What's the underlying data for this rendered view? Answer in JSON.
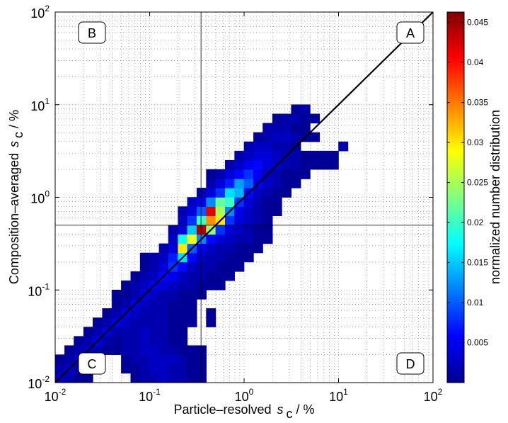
{
  "chart_data": {
    "type": "heatmap",
    "xlabel": {
      "text": "Particle–resolved",
      "symbol": "s",
      "subscript": "c",
      "unit": "/ %"
    },
    "ylabel": {
      "text": "Composition–averaged",
      "symbol": "s",
      "subscript": "c",
      "unit": "/ %"
    },
    "colorbar_label": "normalized number distribution",
    "xscale": "log",
    "yscale": "log",
    "grid": true,
    "colormap": "jet",
    "xlim": [
      0.01,
      100
    ],
    "ylim": [
      0.01,
      100
    ],
    "xticks": [
      {
        "value": 0.01,
        "label": "10",
        "exponent": "-2"
      },
      {
        "value": 0.1,
        "label": "10",
        "exponent": "-1"
      },
      {
        "value": 1,
        "label": "10",
        "exponent": "0"
      },
      {
        "value": 10,
        "label": "10",
        "exponent": "1"
      },
      {
        "value": 100,
        "label": "10",
        "exponent": "2"
      }
    ],
    "yticks": [
      {
        "value": 0.01,
        "label": "10",
        "exponent": "-2"
      },
      {
        "value": 0.1,
        "label": "10",
        "exponent": "-1"
      },
      {
        "value": 1,
        "label": "10",
        "exponent": "0"
      },
      {
        "value": 10,
        "label": "10",
        "exponent": "1"
      },
      {
        "value": 100,
        "label": "10",
        "exponent": "2"
      }
    ],
    "minor_ticks": [
      0.02,
      0.03,
      0.04,
      0.05,
      0.06,
      0.07,
      0.08,
      0.09,
      0.2,
      0.3,
      0.4,
      0.5,
      0.6,
      0.7,
      0.8,
      0.9,
      2,
      3,
      4,
      5,
      6,
      7,
      8,
      9,
      20,
      30,
      40,
      50,
      60,
      70,
      80,
      90
    ],
    "clim": [
      0,
      0.0463
    ],
    "cticks": [
      0.005,
      0.01,
      0.015,
      0.02,
      0.025,
      0.03,
      0.035,
      0.04,
      0.045
    ],
    "diagonal": true,
    "reference_lines": {
      "x": 0.35,
      "y": 0.5
    },
    "quadrant_labels": [
      "A",
      "B",
      "C",
      "D"
    ],
    "x_bins": [
      0.01,
      0.0126,
      0.0158,
      0.02,
      0.0251,
      0.0316,
      0.0398,
      0.0501,
      0.0631,
      0.0794,
      0.1,
      0.126,
      0.158,
      0.2,
      0.251,
      0.316,
      0.398,
      0.501,
      0.631,
      0.794,
      1,
      1.26,
      1.58,
      2,
      2.51,
      3.16,
      3.98,
      5.01,
      6.31,
      7.94,
      10,
      12.6,
      15.8
    ],
    "y_bins": [
      0.01,
      0.0126,
      0.0158,
      0.02,
      0.0251,
      0.0316,
      0.0398,
      0.0501,
      0.0631,
      0.0794,
      0.1,
      0.126,
      0.158,
      0.2,
      0.251,
      0.316,
      0.398,
      0.501,
      0.631,
      0.794,
      1,
      1.26,
      1.58,
      2,
      2.51,
      3.16,
      3.98,
      5.01,
      6.31,
      7.94,
      10
    ],
    "z": [
      [
        0.003,
        0.002,
        0.001,
        0.001,
        null,
        null,
        null,
        null,
        0.001,
        0.002,
        0.002,
        0.003,
        0.002,
        0.002,
        0.001,
        0.001,
        null,
        null,
        null,
        null,
        null,
        null,
        null,
        null,
        null,
        null,
        null,
        null,
        null,
        null,
        null,
        null
      ],
      [
        0.002,
        0.003,
        0.002,
        0.001,
        null,
        null,
        null,
        0.001,
        0.001,
        0.002,
        0.003,
        0.003,
        0.002,
        0.002,
        0.001,
        0.001,
        null,
        null,
        null,
        null,
        null,
        null,
        null,
        null,
        null,
        null,
        null,
        null,
        null,
        null,
        null,
        null
      ],
      [
        0.001,
        0.002,
        0.003,
        0.002,
        0.001,
        null,
        null,
        0.001,
        0.002,
        0.002,
        0.003,
        0.003,
        0.003,
        0.002,
        0.001,
        0.001,
        null,
        null,
        null,
        null,
        null,
        null,
        null,
        null,
        null,
        null,
        null,
        null,
        null,
        null,
        null,
        null
      ],
      [
        null,
        0.001,
        0.002,
        0.003,
        0.002,
        0.001,
        0.001,
        0.002,
        0.002,
        0.003,
        0.003,
        0.002,
        0.002,
        0.001,
        0.001,
        0.001,
        null,
        null,
        null,
        null,
        null,
        null,
        null,
        null,
        null,
        null,
        null,
        null,
        null,
        null,
        null,
        null
      ],
      [
        null,
        null,
        0.001,
        0.002,
        0.004,
        0.002,
        0.001,
        0.002,
        0.002,
        0.003,
        0.002,
        0.002,
        0.001,
        0.001,
        null,
        null,
        null,
        null,
        null,
        null,
        null,
        null,
        null,
        null,
        null,
        null,
        null,
        null,
        null,
        null,
        null,
        null
      ],
      [
        null,
        null,
        null,
        0.001,
        0.002,
        0.004,
        0.002,
        0.002,
        0.002,
        0.003,
        0.002,
        0.002,
        0.001,
        0.001,
        null,
        null,
        null,
        null,
        null,
        null,
        null,
        null,
        null,
        null,
        null,
        null,
        null,
        null,
        null,
        null,
        null,
        null
      ],
      [
        null,
        null,
        null,
        null,
        0.001,
        0.002,
        0.004,
        0.003,
        0.002,
        0.002,
        0.002,
        0.002,
        0.001,
        0.001,
        0.001,
        null,
        0.001,
        null,
        null,
        null,
        null,
        null,
        null,
        null,
        null,
        null,
        null,
        null,
        null,
        null,
        null,
        null
      ],
      [
        null,
        null,
        null,
        null,
        null,
        0.001,
        0.002,
        0.004,
        0.003,
        0.002,
        0.002,
        0.002,
        0.001,
        0.001,
        0.001,
        null,
        0.001,
        null,
        null,
        null,
        null,
        null,
        null,
        null,
        null,
        null,
        null,
        null,
        null,
        null,
        null,
        null
      ],
      [
        null,
        null,
        null,
        null,
        null,
        null,
        0.001,
        0.002,
        0.004,
        0.003,
        0.002,
        0.002,
        0.001,
        0.001,
        0.001,
        null,
        null,
        null,
        null,
        null,
        null,
        null,
        null,
        null,
        null,
        null,
        null,
        null,
        null,
        null,
        null,
        null
      ],
      [
        null,
        null,
        null,
        null,
        null,
        null,
        0.001,
        0.001,
        0.002,
        0.004,
        0.003,
        0.002,
        0.002,
        0.001,
        0.001,
        0.001,
        null,
        null,
        null,
        null,
        null,
        null,
        null,
        null,
        null,
        null,
        null,
        null,
        null,
        null,
        null,
        null
      ],
      [
        null,
        null,
        null,
        null,
        null,
        null,
        null,
        0.001,
        0.002,
        0.003,
        0.005,
        0.004,
        0.003,
        0.002,
        0.002,
        0.001,
        0.001,
        0.001,
        null,
        null,
        null,
        null,
        null,
        null,
        null,
        null,
        null,
        null,
        null,
        null,
        null,
        null
      ],
      [
        null,
        null,
        null,
        null,
        null,
        null,
        null,
        null,
        0.001,
        0.002,
        0.003,
        0.006,
        0.005,
        0.003,
        0.002,
        0.002,
        0.001,
        0.001,
        0.001,
        null,
        null,
        null,
        null,
        null,
        null,
        null,
        null,
        null,
        null,
        null,
        null,
        null
      ],
      [
        null,
        null,
        null,
        null,
        null,
        null,
        null,
        null,
        null,
        0.001,
        0.002,
        0.004,
        0.008,
        0.006,
        0.003,
        0.002,
        0.002,
        0.001,
        0.001,
        0.001,
        null,
        null,
        null,
        null,
        null,
        null,
        null,
        null,
        null,
        null,
        null,
        null
      ],
      [
        null,
        null,
        null,
        null,
        null,
        null,
        null,
        null,
        null,
        0.001,
        0.002,
        0.003,
        0.007,
        0.016,
        0.006,
        0.003,
        0.002,
        0.002,
        0.001,
        0.001,
        0.001,
        null,
        null,
        null,
        null,
        null,
        null,
        null,
        null,
        null,
        null,
        null
      ],
      [
        null,
        null,
        null,
        null,
        null,
        null,
        null,
        null,
        null,
        null,
        null,
        0.002,
        0.004,
        0.03,
        0.01,
        0.005,
        0.003,
        0.002,
        0.002,
        0.001,
        0.001,
        0.001,
        null,
        null,
        null,
        null,
        null,
        null,
        null,
        null,
        null,
        null
      ],
      [
        null,
        null,
        null,
        null,
        null,
        null,
        null,
        null,
        null,
        null,
        null,
        null,
        0.003,
        0.018,
        0.028,
        0.012,
        0.006,
        0.004,
        0.003,
        0.002,
        0.002,
        0.001,
        0.001,
        null,
        null,
        null,
        null,
        null,
        null,
        null,
        null,
        null
      ],
      [
        null,
        null,
        null,
        null,
        null,
        null,
        null,
        null,
        null,
        null,
        null,
        null,
        0.002,
        0.004,
        0.015,
        0.044,
        0.024,
        0.008,
        0.004,
        0.003,
        0.002,
        0.001,
        0.001,
        null,
        null,
        null,
        null,
        null,
        null,
        null,
        null,
        null
      ],
      [
        null,
        null,
        null,
        null,
        null,
        null,
        null,
        null,
        null,
        null,
        null,
        null,
        null,
        0.003,
        0.008,
        0.02,
        0.034,
        0.03,
        0.008,
        0.004,
        0.003,
        0.002,
        0.001,
        null,
        null,
        null,
        null,
        null,
        null,
        null,
        null,
        null
      ],
      [
        null,
        null,
        null,
        null,
        null,
        null,
        null,
        null,
        null,
        null,
        null,
        null,
        null,
        0.002,
        0.004,
        0.01,
        0.042,
        0.025,
        0.012,
        0.005,
        0.003,
        0.002,
        0.001,
        0.001,
        null,
        null,
        null,
        null,
        null,
        null,
        null,
        null
      ],
      [
        null,
        null,
        null,
        null,
        null,
        null,
        null,
        null,
        null,
        null,
        null,
        null,
        null,
        null,
        0.003,
        0.005,
        0.012,
        0.022,
        0.02,
        0.008,
        0.004,
        0.002,
        0.001,
        0.001,
        null,
        null,
        null,
        null,
        null,
        null,
        null,
        null
      ],
      [
        null,
        null,
        null,
        null,
        null,
        null,
        null,
        null,
        null,
        null,
        null,
        null,
        null,
        null,
        null,
        0.002,
        0.004,
        0.008,
        0.016,
        0.014,
        0.006,
        0.003,
        0.002,
        0.001,
        0.001,
        null,
        null,
        null,
        null,
        null,
        null,
        null
      ],
      [
        null,
        null,
        null,
        null,
        null,
        null,
        null,
        null,
        null,
        null,
        null,
        null,
        null,
        null,
        null,
        null,
        0.002,
        0.004,
        0.007,
        0.013,
        0.01,
        0.005,
        0.003,
        0.002,
        0.001,
        0.001,
        null,
        null,
        null,
        null,
        null,
        null
      ],
      [
        null,
        null,
        null,
        null,
        null,
        null,
        null,
        null,
        null,
        null,
        null,
        null,
        null,
        null,
        null,
        null,
        0.001,
        0.002,
        0.004,
        0.006,
        0.008,
        0.005,
        0.003,
        0.002,
        0.001,
        0.001,
        0.001,
        null,
        null,
        null,
        null,
        null
      ],
      [
        null,
        null,
        null,
        null,
        null,
        null,
        null,
        null,
        null,
        null,
        null,
        null,
        null,
        null,
        null,
        null,
        null,
        null,
        0.002,
        0.003,
        0.005,
        0.006,
        0.004,
        0.003,
        0.002,
        0.002,
        0.001,
        0.001,
        0.001,
        0.001,
        null,
        null
      ],
      [
        null,
        null,
        null,
        null,
        null,
        null,
        null,
        null,
        null,
        null,
        null,
        null,
        null,
        null,
        null,
        null,
        null,
        null,
        null,
        0.002,
        0.003,
        0.004,
        0.004,
        0.003,
        0.002,
        0.002,
        0.001,
        0.001,
        0.001,
        0.001,
        null,
        null
      ],
      [
        null,
        null,
        null,
        null,
        null,
        null,
        null,
        null,
        null,
        null,
        null,
        null,
        null,
        null,
        null,
        null,
        null,
        null,
        null,
        null,
        0.002,
        0.003,
        0.003,
        0.002,
        0.002,
        0.001,
        null,
        null,
        null,
        null,
        0.002,
        null
      ],
      [
        null,
        null,
        null,
        null,
        null,
        null,
        null,
        null,
        null,
        null,
        null,
        null,
        null,
        null,
        null,
        null,
        null,
        null,
        null,
        null,
        null,
        0.001,
        0.002,
        0.003,
        0.003,
        0.002,
        0.001,
        0.001,
        null,
        null,
        null,
        null
      ],
      [
        null,
        null,
        null,
        null,
        null,
        null,
        null,
        null,
        null,
        null,
        null,
        null,
        null,
        null,
        null,
        null,
        null,
        null,
        null,
        null,
        null,
        null,
        0.002,
        0.002,
        0.002,
        0.001,
        0.001,
        null,
        null,
        null,
        null,
        null
      ],
      [
        null,
        null,
        null,
        null,
        null,
        null,
        null,
        null,
        null,
        null,
        null,
        null,
        null,
        null,
        null,
        null,
        null,
        null,
        null,
        null,
        null,
        null,
        null,
        0.001,
        0.002,
        0.002,
        0.001,
        0.001,
        null,
        null,
        null,
        null
      ],
      [
        null,
        null,
        null,
        null,
        null,
        null,
        null,
        null,
        null,
        null,
        null,
        null,
        null,
        null,
        null,
        null,
        null,
        null,
        null,
        null,
        null,
        null,
        null,
        null,
        null,
        0.001,
        0.002,
        null,
        null,
        null,
        null,
        null
      ]
    ]
  }
}
